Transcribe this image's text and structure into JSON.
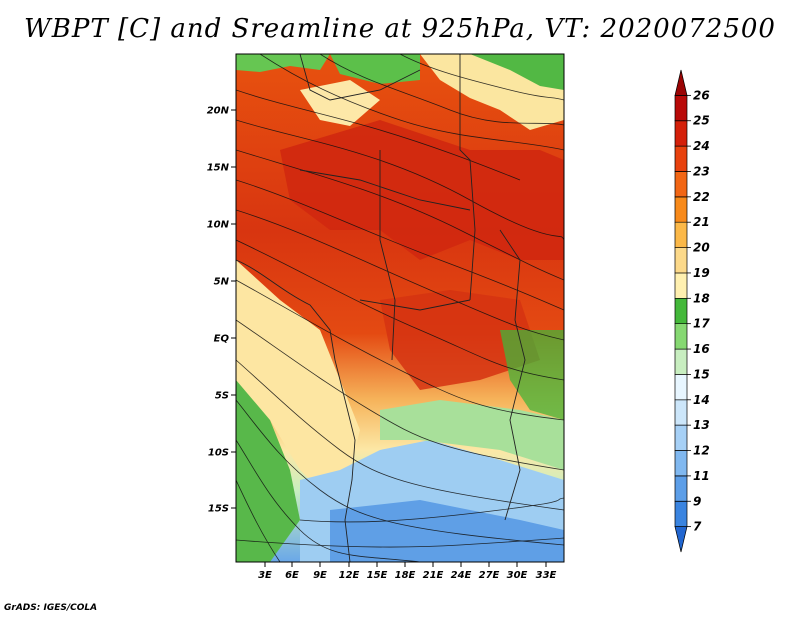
{
  "title": "WBPT [C] and Sreamline at 925hPa, VT: 2020072500",
  "credit": "GrADS: IGES/COLA",
  "map": {
    "lat_ticks": [
      "20N",
      "15N",
      "10N",
      "5N",
      "EQ",
      "5S",
      "10S",
      "15S"
    ],
    "lon_ticks": [
      "3E",
      "6E",
      "9E",
      "12E",
      "15E",
      "18E",
      "21E",
      "24E",
      "27E",
      "30E",
      "33E"
    ]
  },
  "colorbar": {
    "levels": [
      "7",
      "9",
      "11",
      "12",
      "13",
      "14",
      "15",
      "16",
      "17",
      "18",
      "19",
      "20",
      "21",
      "22",
      "23",
      "24",
      "25",
      "26"
    ],
    "colors": [
      "#2166d0",
      "#3a84e0",
      "#5c9ee8",
      "#80b8f0",
      "#a6d0f6",
      "#cce6fa",
      "#e8f6ff",
      "#c8eec0",
      "#86d872",
      "#44b83a",
      "#fff0b0",
      "#fcd98a",
      "#fbb848",
      "#f88a1a",
      "#f26614",
      "#e8420e",
      "#d4200a",
      "#b80a08",
      "#9a0404"
    ]
  }
}
